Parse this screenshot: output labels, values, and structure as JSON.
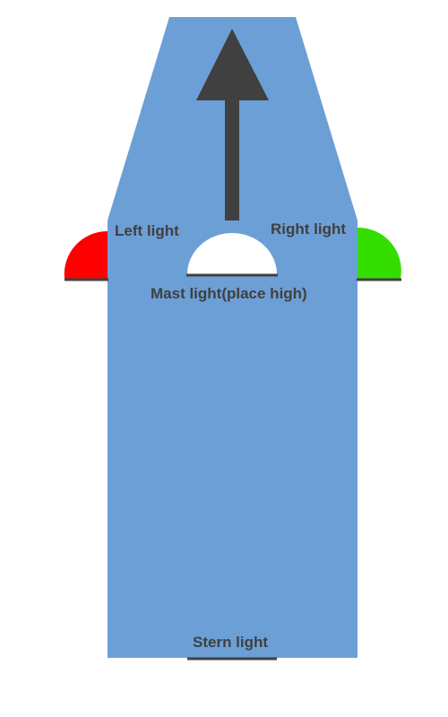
{
  "labels": {
    "left_light": "Left light",
    "right_light": "Right light",
    "mast_light": "Mast light(place high)",
    "stern_light": "Stern light"
  },
  "colors": {
    "hull": "#6c9fd6",
    "left_light": "#ff0000",
    "right_light": "#33dd00",
    "mast_light": "#ffffff",
    "arrow": "#404040",
    "base_line": "#404040",
    "label_text": "#404040"
  },
  "icons": {
    "direction": "arrow-up-icon"
  }
}
